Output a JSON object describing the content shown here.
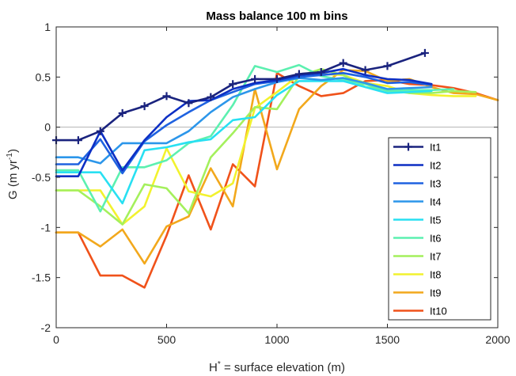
{
  "chart_data": {
    "type": "line",
    "title": "Mass balance 100 m bins",
    "xlabel": {
      "main": "H",
      "sup": "*",
      "rest": " = surface elevation (m)"
    },
    "ylabel": {
      "main": "G (m yr",
      "sup": "-1",
      "rest": ")"
    },
    "xlim": [
      0,
      2000
    ],
    "ylim": [
      -2,
      1
    ],
    "xticks": [
      0,
      500,
      1000,
      1500,
      2000
    ],
    "yticks": [
      -2,
      -1.5,
      -1,
      -0.5,
      0,
      0.5,
      1
    ],
    "xtick_labels": [
      "0",
      "500",
      "1000",
      "1500",
      "2000"
    ],
    "ytick_labels": [
      "-2",
      "-1.5",
      "-1",
      "-0.5",
      "0",
      "0.5",
      "1"
    ],
    "zero_line": true,
    "grid": false,
    "legend_position": "bottom-right",
    "series": [
      {
        "name": "It1",
        "color": "#1a237e",
        "marker": "plus",
        "x": [
          0,
          100,
          200,
          300,
          400,
          500,
          600,
          700,
          800,
          900,
          1000,
          1100,
          1200,
          1300,
          1400,
          1500,
          1670
        ],
        "y": [
          -0.13,
          -0.13,
          -0.04,
          0.14,
          0.21,
          0.31,
          0.24,
          0.3,
          0.43,
          0.48,
          0.48,
          0.53,
          0.55,
          0.64,
          0.57,
          0.61,
          0.74
        ]
      },
      {
        "name": "It2",
        "color": "#0d2fc4",
        "x": [
          0,
          100,
          200,
          300,
          400,
          500,
          600,
          700,
          800,
          900,
          1000,
          1100,
          1200,
          1300,
          1400,
          1500,
          1600,
          1700
        ],
        "y": [
          -0.49,
          -0.49,
          -0.04,
          -0.43,
          -0.13,
          0.1,
          0.26,
          0.27,
          0.38,
          0.44,
          0.47,
          0.52,
          0.54,
          0.58,
          0.52,
          0.48,
          0.47,
          0.43
        ]
      },
      {
        "name": "It3",
        "color": "#1f62e0",
        "x": [
          0,
          100,
          200,
          300,
          400,
          500,
          600,
          700,
          800,
          900,
          1000,
          1100,
          1200,
          1300,
          1400,
          1500,
          1600,
          1700
        ],
        "y": [
          -0.37,
          -0.37,
          -0.12,
          -0.46,
          -0.14,
          0.02,
          0.15,
          0.27,
          0.35,
          0.43,
          0.46,
          0.5,
          0.52,
          0.54,
          0.5,
          0.44,
          0.45,
          0.42
        ]
      },
      {
        "name": "It4",
        "color": "#2c96ea",
        "x": [
          0,
          100,
          200,
          300,
          400,
          500,
          600,
          700,
          800,
          900,
          1000,
          1100,
          1200,
          1300,
          1400,
          1500,
          1600,
          1700
        ],
        "y": [
          -0.3,
          -0.3,
          -0.36,
          -0.16,
          -0.16,
          -0.16,
          -0.04,
          0.15,
          0.3,
          0.38,
          0.45,
          0.49,
          0.47,
          0.49,
          0.44,
          0.38,
          0.39,
          0.4
        ]
      },
      {
        "name": "It5",
        "color": "#28e0f2",
        "x": [
          0,
          100,
          200,
          300,
          400,
          500,
          600,
          700,
          800,
          900,
          1000,
          1100,
          1200,
          1300,
          1400,
          1500,
          1600,
          1700
        ],
        "y": [
          -0.45,
          -0.45,
          -0.45,
          -0.76,
          -0.23,
          -0.2,
          -0.15,
          -0.12,
          0.07,
          0.1,
          0.32,
          0.46,
          0.46,
          0.46,
          0.4,
          0.34,
          0.35,
          0.36
        ]
      },
      {
        "name": "It6",
        "color": "#5cf0b0",
        "x": [
          0,
          100,
          200,
          300,
          400,
          500,
          600,
          700,
          800,
          900,
          1000,
          1100,
          1200,
          1300,
          1400,
          1500,
          1600,
          1700,
          1800
        ],
        "y": [
          -0.43,
          -0.43,
          -0.84,
          -0.4,
          -0.4,
          -0.33,
          -0.16,
          -0.09,
          0.22,
          0.61,
          0.55,
          0.62,
          0.51,
          0.47,
          0.43,
          0.36,
          0.37,
          0.37,
          0.38
        ]
      },
      {
        "name": "It7",
        "color": "#a4f05c",
        "x": [
          0,
          100,
          200,
          300,
          400,
          500,
          600,
          700,
          800,
          900,
          1000,
          1100,
          1200,
          1300,
          1400,
          1500,
          1600,
          1700,
          1800,
          1900
        ],
        "y": [
          -0.63,
          -0.63,
          -0.79,
          -0.97,
          -0.57,
          -0.61,
          -0.86,
          -0.3,
          -0.06,
          0.2,
          0.18,
          0.51,
          0.58,
          0.52,
          0.4,
          0.37,
          0.34,
          0.34,
          0.36,
          0.35
        ]
      },
      {
        "name": "It8",
        "color": "#f2f22e",
        "x": [
          0,
          100,
          200,
          300,
          400,
          500,
          600,
          700,
          800,
          900,
          1000,
          1100,
          1200,
          1300,
          1400,
          1500,
          1600,
          1700,
          1800,
          1900
        ],
        "y": [
          -0.63,
          -0.63,
          -0.63,
          -0.97,
          -0.79,
          -0.21,
          -0.64,
          -0.69,
          -0.56,
          0.19,
          0.35,
          0.52,
          0.53,
          0.52,
          0.44,
          0.41,
          0.34,
          0.32,
          0.31,
          0.31
        ]
      },
      {
        "name": "It9",
        "color": "#f2a81c",
        "x": [
          0,
          100,
          200,
          300,
          400,
          500,
          600,
          700,
          800,
          900,
          1000,
          1100,
          1200,
          1300,
          1400,
          1500,
          1600,
          1700,
          1800,
          1900,
          2000
        ],
        "y": [
          -1.05,
          -1.05,
          -1.19,
          -1.02,
          -1.36,
          -0.99,
          -0.89,
          -0.41,
          -0.79,
          0.38,
          -0.42,
          0.18,
          0.41,
          0.57,
          0.56,
          0.46,
          0.48,
          0.4,
          0.34,
          0.33,
          0.27
        ]
      },
      {
        "name": "It10",
        "color": "#f0521a",
        "x": [
          0,
          100,
          200,
          300,
          400,
          500,
          600,
          700,
          800,
          900,
          1000,
          1100,
          1200,
          1300,
          1400,
          1500,
          1600,
          1700,
          1800,
          1900,
          2000
        ],
        "y": [
          -1.05,
          -1.05,
          -1.48,
          -1.48,
          -1.6,
          -1.08,
          -0.48,
          -1.02,
          -0.37,
          -0.59,
          0.54,
          0.41,
          0.31,
          0.34,
          0.46,
          0.47,
          0.43,
          0.42,
          0.39,
          0.34,
          0.27
        ]
      }
    ]
  }
}
